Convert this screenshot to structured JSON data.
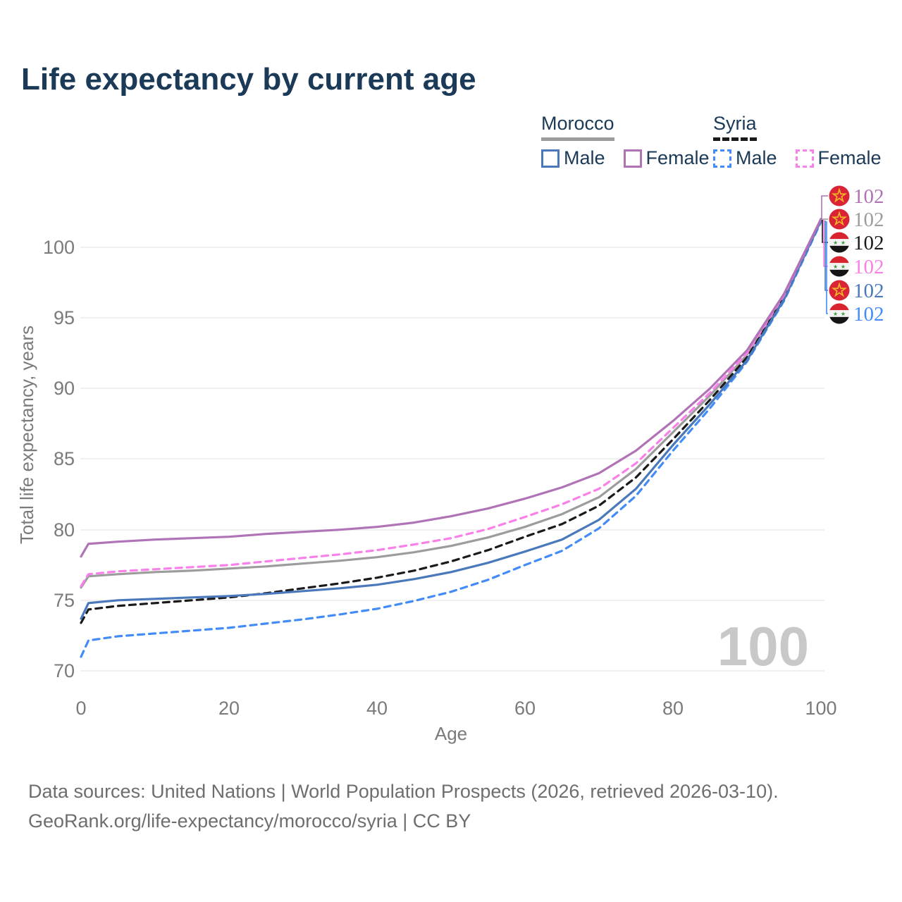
{
  "title": "Life expectancy by current age",
  "colors": {
    "navy_text": "#1b3a58",
    "axis_gray": "#7a7a7a",
    "watermark_gray": "#c8c8c8",
    "grid_gray": "#ececec"
  },
  "legend": {
    "groups": [
      {
        "country": "Morocco",
        "line_style": "solid",
        "line_color": "#9c9c9c",
        "items": [
          {
            "label": "Male",
            "color": "#4a79bb",
            "style": "solid"
          },
          {
            "label": "Female",
            "color": "#b073b6",
            "style": "solid"
          }
        ]
      },
      {
        "country": "Syria",
        "line_style": "dashed",
        "line_color": "#1a1a1a",
        "items": [
          {
            "label": "Male",
            "color": "#438cf8",
            "style": "dashed"
          },
          {
            "label": "Female",
            "color": "#f980e8",
            "style": "dashed"
          }
        ]
      }
    ]
  },
  "watermark_age": "100",
  "footer": {
    "line1": "Data sources: United Nations | World Population Prospects (2026, retrieved 2026-03-10).",
    "line2": "GeoRank.org/life-expectancy/morocco/syria | CC BY"
  },
  "chart_data": {
    "type": "line",
    "title": "Life expectancy by current age",
    "xlabel": "Age",
    "ylabel": "Total life expectancy, years",
    "xlim": [
      0,
      100
    ],
    "ylim": [
      70,
      102
    ],
    "x_ticks": [
      0,
      20,
      40,
      60,
      80,
      100
    ],
    "y_ticks": [
      70,
      75,
      80,
      85,
      90,
      95,
      100
    ],
    "grid": "horizontal",
    "legend_position": "top-right",
    "x": [
      0,
      1,
      5,
      10,
      15,
      20,
      25,
      30,
      35,
      40,
      45,
      50,
      55,
      60,
      65,
      70,
      75,
      80,
      85,
      90,
      95,
      100
    ],
    "series": [
      {
        "name": "Morocco Male",
        "country": "Morocco",
        "sex": "Male",
        "color": "#4a79bb",
        "dash": false,
        "values": [
          73.7,
          74.8,
          75.0,
          75.1,
          75.2,
          75.3,
          75.45,
          75.65,
          75.85,
          76.1,
          76.5,
          77.0,
          77.65,
          78.45,
          79.3,
          80.7,
          82.9,
          86.0,
          88.9,
          92.0,
          96.3,
          101.9
        ]
      },
      {
        "name": "Morocco Female",
        "country": "Morocco",
        "sex": "Female",
        "color": "#b073b6",
        "dash": false,
        "values": [
          78.1,
          79.0,
          79.15,
          79.3,
          79.4,
          79.5,
          79.7,
          79.85,
          80.0,
          80.2,
          80.5,
          80.95,
          81.5,
          82.2,
          83.0,
          84.0,
          85.6,
          87.7,
          90.0,
          92.7,
          96.7,
          102.0
        ]
      },
      {
        "name": "Morocco Both sexes",
        "country": "Morocco",
        "sex": "Both",
        "color": "#9c9c9c",
        "dash": false,
        "values": [
          75.9,
          76.7,
          76.85,
          77.0,
          77.1,
          77.25,
          77.4,
          77.6,
          77.8,
          78.05,
          78.4,
          78.85,
          79.45,
          80.2,
          81.1,
          82.3,
          84.3,
          86.9,
          89.5,
          92.4,
          96.5,
          102.0
        ]
      },
      {
        "name": "Syria Male",
        "country": "Syria",
        "sex": "Male",
        "color": "#438cf8",
        "dash": true,
        "values": [
          71.0,
          72.15,
          72.45,
          72.65,
          72.85,
          73.05,
          73.35,
          73.65,
          74.0,
          74.4,
          74.95,
          75.6,
          76.45,
          77.5,
          78.5,
          80.1,
          82.4,
          85.6,
          88.6,
          91.9,
          96.2,
          101.8
        ]
      },
      {
        "name": "Syria Female",
        "country": "Syria",
        "sex": "Female",
        "color": "#f980e8",
        "dash": true,
        "values": [
          76.0,
          76.85,
          77.05,
          77.2,
          77.35,
          77.5,
          77.75,
          78.0,
          78.25,
          78.55,
          78.95,
          79.4,
          80.05,
          80.9,
          81.8,
          82.9,
          84.7,
          87.2,
          89.7,
          92.5,
          96.6,
          102.0
        ]
      },
      {
        "name": "Syria Both sexes",
        "country": "Syria",
        "sex": "Both",
        "color": "#1a1a1a",
        "dash": true,
        "values": [
          73.4,
          74.35,
          74.6,
          74.8,
          75.0,
          75.2,
          75.5,
          75.85,
          76.2,
          76.6,
          77.1,
          77.75,
          78.55,
          79.5,
          80.4,
          81.7,
          83.7,
          86.4,
          89.2,
          92.2,
          96.4,
          102.0
        ]
      }
    ],
    "endpoint_labels": [
      {
        "series": "Morocco Female",
        "flag": "morocco",
        "value": "102",
        "color": "#b073b6"
      },
      {
        "series": "Morocco Both sexes",
        "flag": "morocco",
        "value": "102",
        "color": "#9c9c9c"
      },
      {
        "series": "Syria Both sexes",
        "flag": "syria",
        "value": "102",
        "color": "#1a1a1a"
      },
      {
        "series": "Syria Female",
        "flag": "syria",
        "value": "102",
        "color": "#f980e8"
      },
      {
        "series": "Morocco Male",
        "flag": "morocco",
        "value": "102",
        "color": "#4a79bb"
      },
      {
        "series": "Syria Male",
        "flag": "syria",
        "value": "102",
        "color": "#438cf8"
      }
    ]
  }
}
